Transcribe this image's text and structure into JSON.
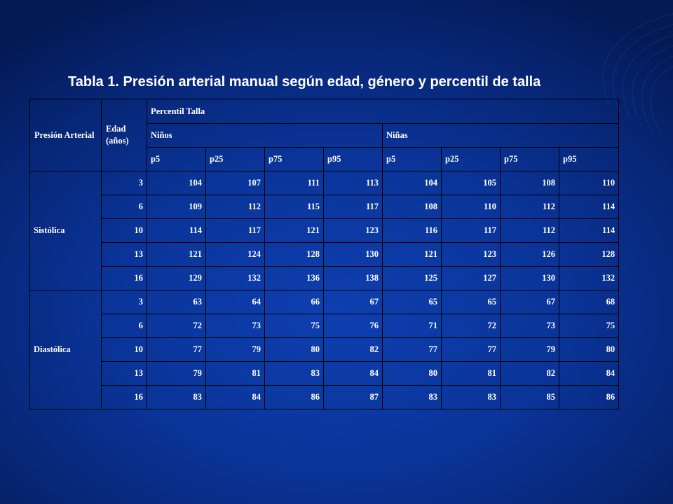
{
  "title": "Tabla 1. Presión arterial manual según edad, género y percentil de talla",
  "colors": {
    "background": "#0a3498",
    "text": "#ffffff",
    "grid": "#000000"
  },
  "table": {
    "header_presion": "Presión Arterial",
    "header_edad": "Edad (años)",
    "header_percentil": "Percentil Talla",
    "header_ninos": "Niños",
    "header_ninas": "Niñas",
    "percentiles": [
      "p5",
      "p25",
      "p75",
      "p95",
      "p5",
      "p25",
      "p75",
      "p95"
    ],
    "groups": [
      {
        "label": "Sistólica",
        "rows": [
          {
            "age": "3",
            "values": [
              "104",
              "107",
              "111",
              "113",
              "104",
              "105",
              "108",
              "110"
            ]
          },
          {
            "age": "6",
            "values": [
              "109",
              "112",
              "115",
              "117",
              "108",
              "110",
              "112",
              "114"
            ]
          },
          {
            "age": "10",
            "values": [
              "114",
              "117",
              "121",
              "123",
              "116",
              "117",
              "112",
              "114"
            ]
          },
          {
            "age": "13",
            "values": [
              "121",
              "124",
              "128",
              "130",
              "121",
              "123",
              "126",
              "128"
            ]
          },
          {
            "age": "16",
            "values": [
              "129",
              "132",
              "136",
              "138",
              "125",
              "127",
              "130",
              "132"
            ]
          }
        ]
      },
      {
        "label": "Diastólica",
        "rows": [
          {
            "age": "3",
            "values": [
              "63",
              "64",
              "66",
              "67",
              "65",
              "65",
              "67",
              "68"
            ]
          },
          {
            "age": "6",
            "values": [
              "72",
              "73",
              "75",
              "76",
              "71",
              "72",
              "73",
              "75"
            ]
          },
          {
            "age": "10",
            "values": [
              "77",
              "79",
              "80",
              "82",
              "77",
              "77",
              "79",
              "80"
            ]
          },
          {
            "age": "13",
            "values": [
              "79",
              "81",
              "83",
              "84",
              "80",
              "81",
              "82",
              "84"
            ]
          },
          {
            "age": "16",
            "values": [
              "83",
              "84",
              "86",
              "87",
              "83",
              "83",
              "85",
              "86"
            ]
          }
        ]
      }
    ]
  }
}
